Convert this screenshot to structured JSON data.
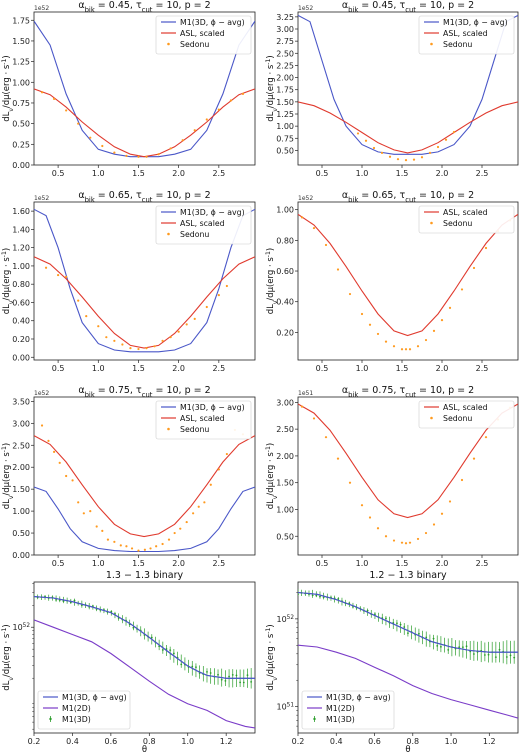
{
  "figure": {
    "x_label_bottom": "θ",
    "y_label": "dL_{ν}/dμ(erg · s^{-1})"
  },
  "colors": {
    "m1_3d_avg": "#4a57c8",
    "m1_2d": "#7a3cc8",
    "asl": "#e03a2e",
    "sedonu": "#ff9a1f",
    "m1_3d_points": "#2a9d2a"
  },
  "chart_data": [
    {
      "type": "line",
      "title": "α_bik = 0.45, τ_cut = 10, p = 2",
      "multiplier": "1e52",
      "xlim": [
        0.2,
        2.95
      ],
      "ylim": [
        0,
        1.85
      ],
      "xticks": [
        0.5,
        1.0,
        1.5,
        2.0,
        2.5
      ],
      "yticks": [
        0.0,
        0.25,
        0.5,
        0.75,
        1.0,
        1.25,
        1.5,
        1.75
      ],
      "series": [
        {
          "name": "M1(3D, ϕ − avg)",
          "kind": "line",
          "color_key": "m1_3d_avg",
          "x": [
            0.2,
            0.4,
            0.6,
            0.8,
            1.0,
            1.2,
            1.4,
            1.57,
            1.75,
            1.95,
            2.15,
            2.35,
            2.55,
            2.75,
            2.95
          ],
          "y": [
            1.74,
            1.45,
            0.86,
            0.42,
            0.19,
            0.13,
            0.1,
            0.1,
            0.1,
            0.13,
            0.19,
            0.42,
            0.86,
            1.45,
            1.74
          ]
        },
        {
          "name": "ASL, scaled",
          "kind": "line",
          "color_key": "asl",
          "x": [
            0.2,
            0.4,
            0.6,
            0.8,
            1.0,
            1.2,
            1.4,
            1.57,
            1.75,
            1.95,
            2.15,
            2.35,
            2.55,
            2.75,
            2.95
          ],
          "y": [
            0.92,
            0.85,
            0.7,
            0.52,
            0.36,
            0.22,
            0.13,
            0.1,
            0.13,
            0.22,
            0.36,
            0.52,
            0.7,
            0.85,
            0.92
          ]
        },
        {
          "name": "Sedonu",
          "kind": "scatter",
          "color_key": "sedonu",
          "x": [
            0.3,
            0.45,
            0.6,
            0.75,
            0.9,
            1.05,
            1.2,
            1.35,
            1.5,
            1.6,
            1.75,
            1.9,
            2.05,
            2.2,
            2.35,
            2.5,
            2.65,
            2.8
          ],
          "y": [
            0.88,
            0.8,
            0.66,
            0.5,
            0.33,
            0.23,
            0.15,
            0.11,
            0.1,
            0.1,
            0.13,
            0.2,
            0.3,
            0.42,
            0.55,
            0.67,
            0.78,
            0.86
          ]
        }
      ]
    },
    {
      "type": "line",
      "title": "α_bik = 0.45, τ_cut = 10, p = 2",
      "multiplier": "1e52",
      "xlim": [
        0.2,
        2.95
      ],
      "ylim": [
        0.2,
        3.35
      ],
      "xticks": [
        0.5,
        1.0,
        1.5,
        2.0,
        2.5
      ],
      "yticks": [
        0.5,
        0.75,
        1.0,
        1.25,
        1.5,
        1.75,
        2.0,
        2.25,
        2.5,
        2.75,
        3.0,
        3.25
      ],
      "series": [
        {
          "name": "M1(3D, ϕ − avg)",
          "kind": "line",
          "color_key": "m1_3d_avg",
          "x": [
            0.2,
            0.35,
            0.5,
            0.65,
            0.8,
            1.0,
            1.2,
            1.4,
            1.57,
            1.75,
            1.95,
            2.15,
            2.35,
            2.5,
            2.65,
            2.8,
            2.95
          ],
          "y": [
            3.28,
            3.15,
            2.35,
            1.55,
            1.0,
            0.62,
            0.47,
            0.42,
            0.42,
            0.42,
            0.47,
            0.62,
            1.0,
            1.55,
            2.35,
            3.15,
            3.28
          ]
        },
        {
          "name": "ASL, scaled",
          "kind": "line",
          "color_key": "asl",
          "x": [
            0.2,
            0.4,
            0.6,
            0.8,
            1.0,
            1.2,
            1.4,
            1.57,
            1.75,
            1.95,
            2.15,
            2.35,
            2.55,
            2.75,
            2.95
          ],
          "y": [
            1.5,
            1.42,
            1.27,
            1.08,
            0.87,
            0.66,
            0.51,
            0.45,
            0.51,
            0.66,
            0.87,
            1.08,
            1.27,
            1.42,
            1.5
          ]
        },
        {
          "name": "Sedonu",
          "kind": "scatter",
          "color_key": "sedonu",
          "x": [
            0.95,
            1.05,
            1.15,
            1.25,
            1.35,
            1.45,
            1.55,
            1.65,
            1.75,
            1.85,
            1.95,
            2.05,
            2.15
          ],
          "y": [
            0.85,
            0.7,
            0.55,
            0.45,
            0.37,
            0.32,
            0.3,
            0.31,
            0.36,
            0.45,
            0.57,
            0.72,
            0.88
          ]
        }
      ]
    },
    {
      "type": "line",
      "title": "α_bik = 0.65, τ_cut = 10, p = 2",
      "multiplier": "1e52",
      "xlim": [
        0.2,
        2.95
      ],
      "ylim": [
        -0.03,
        1.7
      ],
      "xticks": [
        0.5,
        1.0,
        1.5,
        2.0,
        2.5
      ],
      "yticks": [
        0.0,
        0.2,
        0.4,
        0.6,
        0.8,
        1.0,
        1.2,
        1.4,
        1.6
      ],
      "series": [
        {
          "name": "M1(3D, ϕ − avg)",
          "kind": "line",
          "color_key": "m1_3d_avg",
          "x": [
            0.2,
            0.35,
            0.5,
            0.65,
            0.8,
            1.0,
            1.2,
            1.4,
            1.57,
            1.75,
            1.95,
            2.15,
            2.35,
            2.5,
            2.65,
            2.8,
            2.95
          ],
          "y": [
            1.62,
            1.55,
            1.2,
            0.75,
            0.38,
            0.15,
            0.08,
            0.06,
            0.06,
            0.06,
            0.08,
            0.15,
            0.38,
            0.75,
            1.2,
            1.55,
            1.62
          ]
        },
        {
          "name": "ASL, scaled",
          "kind": "line",
          "color_key": "asl",
          "x": [
            0.2,
            0.4,
            0.6,
            0.8,
            1.0,
            1.2,
            1.4,
            1.57,
            1.75,
            1.95,
            2.15,
            2.35,
            2.55,
            2.75,
            2.95
          ],
          "y": [
            1.1,
            1.02,
            0.86,
            0.66,
            0.45,
            0.26,
            0.13,
            0.1,
            0.13,
            0.26,
            0.45,
            0.66,
            0.86,
            1.02,
            1.1
          ]
        },
        {
          "name": "Sedonu",
          "kind": "scatter",
          "color_key": "sedonu",
          "x": [
            0.35,
            0.5,
            0.6,
            0.75,
            0.85,
            1.0,
            1.1,
            1.2,
            1.3,
            1.4,
            1.5,
            1.6,
            1.7,
            1.8,
            1.9,
            2.0,
            2.1,
            2.2,
            2.35,
            2.5,
            2.6
          ],
          "y": [
            0.98,
            0.9,
            0.88,
            0.62,
            0.45,
            0.34,
            0.22,
            0.18,
            0.14,
            0.1,
            0.09,
            0.1,
            0.12,
            0.18,
            0.22,
            0.28,
            0.36,
            0.42,
            0.55,
            0.68,
            0.78
          ]
        }
      ]
    },
    {
      "type": "line",
      "title": "α_bik = 0.65, τ_cut = 10, p = 2",
      "multiplier": "1e52",
      "xlim": [
        0.2,
        2.95
      ],
      "ylim": [
        0.02,
        1.05
      ],
      "xticks": [
        0.5,
        1.0,
        1.5,
        2.0,
        2.5
      ],
      "yticks": [
        0.2,
        0.4,
        0.6,
        0.8,
        1.0
      ],
      "series": [
        {
          "name": "ASL, scaled",
          "kind": "line",
          "color_key": "asl",
          "x": [
            0.2,
            0.4,
            0.6,
            0.8,
            1.0,
            1.2,
            1.4,
            1.57,
            1.75,
            1.95,
            2.15,
            2.35,
            2.55,
            2.75,
            2.95
          ],
          "y": [
            0.97,
            0.9,
            0.78,
            0.63,
            0.47,
            0.32,
            0.21,
            0.18,
            0.21,
            0.32,
            0.47,
            0.63,
            0.78,
            0.9,
            0.97
          ]
        },
        {
          "name": "Sedonu",
          "kind": "scatter",
          "color_key": "sedonu",
          "x": [
            0.25,
            0.4,
            0.55,
            0.7,
            0.85,
            1.0,
            1.1,
            1.2,
            1.3,
            1.4,
            1.5,
            1.55,
            1.6,
            1.7,
            1.8,
            1.9,
            2.0,
            2.1,
            2.25,
            2.4,
            2.55,
            2.7,
            2.85
          ],
          "y": [
            0.95,
            0.88,
            0.77,
            0.61,
            0.45,
            0.32,
            0.25,
            0.19,
            0.14,
            0.11,
            0.09,
            0.09,
            0.09,
            0.11,
            0.15,
            0.21,
            0.28,
            0.36,
            0.48,
            0.62,
            0.75,
            0.86,
            0.93
          ]
        }
      ]
    },
    {
      "type": "line",
      "title": "α_bik = 0.75, τ_cut = 10, p = 2",
      "multiplier": "1e52",
      "xlim": [
        0.2,
        2.95
      ],
      "ylim": [
        0,
        3.6
      ],
      "xticks": [
        0.5,
        1.0,
        1.5,
        2.0,
        2.5
      ],
      "yticks": [
        0.0,
        0.5,
        1.0,
        1.5,
        2.0,
        2.5,
        3.0,
        3.5
      ],
      "series": [
        {
          "name": "M1(3D, ϕ − avg)",
          "kind": "line",
          "color_key": "m1_3d_avg",
          "x": [
            0.2,
            0.35,
            0.5,
            0.65,
            0.8,
            1.0,
            1.2,
            1.4,
            1.57,
            1.75,
            1.95,
            2.15,
            2.35,
            2.5,
            2.65,
            2.8,
            2.95
          ],
          "y": [
            1.55,
            1.45,
            1.05,
            0.6,
            0.3,
            0.15,
            0.1,
            0.08,
            0.08,
            0.08,
            0.1,
            0.15,
            0.3,
            0.6,
            1.05,
            1.45,
            1.55
          ]
        },
        {
          "name": "ASL, scaled",
          "kind": "line",
          "color_key": "asl",
          "x": [
            0.2,
            0.4,
            0.6,
            0.8,
            1.0,
            1.2,
            1.4,
            1.57,
            1.75,
            1.95,
            2.15,
            2.35,
            2.55,
            2.75,
            2.95
          ],
          "y": [
            2.72,
            2.52,
            2.12,
            1.6,
            1.1,
            0.7,
            0.48,
            0.42,
            0.48,
            0.7,
            1.1,
            1.6,
            2.12,
            2.52,
            2.72
          ]
        },
        {
          "name": "Sedonu",
          "kind": "scatter",
          "color_key": "sedonu",
          "x": [
            0.3,
            0.38,
            0.45,
            0.52,
            0.6,
            0.68,
            0.75,
            0.82,
            0.9,
            0.98,
            1.05,
            1.12,
            1.2,
            1.28,
            1.35,
            1.42,
            1.5,
            1.58,
            1.65,
            1.72,
            1.8,
            1.88,
            1.95,
            2.02,
            2.1,
            2.18,
            2.25,
            2.32,
            2.4,
            2.5,
            2.6,
            2.7,
            2.8
          ],
          "y": [
            2.95,
            2.6,
            2.35,
            2.1,
            1.8,
            1.7,
            1.2,
            0.95,
            1.0,
            0.65,
            0.55,
            0.35,
            0.3,
            0.22,
            0.2,
            0.15,
            0.1,
            0.12,
            0.15,
            0.2,
            0.25,
            0.35,
            0.5,
            0.6,
            0.75,
            0.95,
            1.1,
            1.2,
            1.6,
            1.95,
            2.3,
            2.85,
            2.75
          ]
        }
      ]
    },
    {
      "type": "line",
      "title": "α_bik = 0.75, τ_cut = 10, p = 2",
      "multiplier": "1e51",
      "xlim": [
        0.2,
        2.95
      ],
      "ylim": [
        0.15,
        3.1
      ],
      "xticks": [
        0.5,
        1.0,
        1.5,
        2.0,
        2.5
      ],
      "yticks": [
        0.5,
        1.0,
        1.5,
        2.0,
        2.5,
        3.0
      ],
      "series": [
        {
          "name": "ASL, scaled",
          "kind": "line",
          "color_key": "asl",
          "x": [
            0.2,
            0.4,
            0.6,
            0.8,
            1.0,
            1.2,
            1.4,
            1.57,
            1.75,
            1.95,
            2.15,
            2.35,
            2.55,
            2.75,
            2.95
          ],
          "y": [
            2.97,
            2.8,
            2.48,
            2.05,
            1.6,
            1.18,
            0.92,
            0.85,
            0.92,
            1.18,
            1.6,
            2.05,
            2.48,
            2.8,
            2.97
          ]
        },
        {
          "name": "Sedonu",
          "kind": "scatter",
          "color_key": "sedonu",
          "x": [
            0.25,
            0.4,
            0.55,
            0.7,
            0.85,
            1.0,
            1.1,
            1.2,
            1.3,
            1.4,
            1.5,
            1.55,
            1.6,
            1.7,
            1.8,
            1.9,
            2.0,
            2.1,
            2.25,
            2.4,
            2.55,
            2.7,
            2.85
          ],
          "y": [
            2.92,
            2.7,
            2.35,
            1.95,
            1.5,
            1.08,
            0.85,
            0.65,
            0.5,
            0.42,
            0.38,
            0.37,
            0.38,
            0.45,
            0.56,
            0.72,
            0.92,
            1.15,
            1.55,
            1.95,
            2.35,
            2.68,
            2.9
          ]
        }
      ]
    },
    {
      "type": "line",
      "title": "1.3 − 1.3 binary",
      "yscale": "log",
      "xlim": [
        0.2,
        1.35
      ],
      "ylim_log": [
        50.55,
        52.62
      ],
      "xticks": [
        0.2,
        0.4,
        0.6,
        0.8,
        1.0,
        1.2
      ],
      "ytick_labels": [
        {
          "value": 52,
          "label": "10^52"
        }
      ],
      "series": [
        {
          "name": "M1(3D, ϕ − avg)",
          "kind": "line",
          "color_key": "m1_3d_avg",
          "x": [
            0.2,
            0.3,
            0.4,
            0.5,
            0.6,
            0.7,
            0.8,
            0.9,
            1.0,
            1.05,
            1.1,
            1.2,
            1.3,
            1.35
          ],
          "log_y": [
            52.42,
            52.4,
            52.35,
            52.28,
            52.2,
            52.05,
            51.86,
            51.66,
            51.47,
            51.4,
            51.34,
            51.3,
            51.3,
            51.3
          ]
        },
        {
          "name": "M1(2D)",
          "kind": "line",
          "color_key": "m1_2d",
          "x": [
            0.2,
            0.3,
            0.4,
            0.5,
            0.6,
            0.7,
            0.8,
            0.9,
            1.0,
            1.1,
            1.2,
            1.3,
            1.35
          ],
          "log_y": [
            52.1,
            52.0,
            51.9,
            51.8,
            51.64,
            51.45,
            51.26,
            51.08,
            50.95,
            50.86,
            50.72,
            50.64,
            50.62
          ]
        },
        {
          "name": "M1(3D)",
          "kind": "errorscatter",
          "color_key": "m1_3d_points",
          "x_start": 0.2,
          "x_end": 1.33,
          "count": 60,
          "log_y_center": "follows M1(3D, ϕ − avg)"
        }
      ]
    },
    {
      "type": "line",
      "title": "1.2 − 1.3 binary",
      "yscale": "log",
      "xlim": [
        0.2,
        1.35
      ],
      "ylim_log": [
        50.7,
        52.42
      ],
      "xticks": [
        0.2,
        0.4,
        0.6,
        0.8,
        1.0,
        1.2
      ],
      "ytick_labels": [
        {
          "value": 51,
          "label": "10^51"
        },
        {
          "value": 52,
          "label": "10^52"
        }
      ],
      "series": [
        {
          "name": "M1(3D, ϕ − avg)",
          "kind": "line",
          "color_key": "m1_3d_avg",
          "x": [
            0.2,
            0.3,
            0.4,
            0.5,
            0.6,
            0.7,
            0.8,
            0.9,
            1.0,
            1.1,
            1.2,
            1.3,
            1.35
          ],
          "log_y": [
            52.3,
            52.28,
            52.22,
            52.14,
            52.04,
            51.94,
            51.84,
            51.74,
            51.68,
            51.64,
            51.62,
            51.62,
            51.62
          ]
        },
        {
          "name": "M1(2D)",
          "kind": "line",
          "color_key": "m1_2d",
          "x": [
            0.2,
            0.3,
            0.4,
            0.5,
            0.6,
            0.7,
            0.8,
            0.9,
            1.0,
            1.1,
            1.2,
            1.3,
            1.35
          ],
          "log_y": [
            51.7,
            51.68,
            51.62,
            51.55,
            51.45,
            51.35,
            51.24,
            51.15,
            51.08,
            51.02,
            50.96,
            50.9,
            50.87
          ]
        },
        {
          "name": "M1(3D)",
          "kind": "errorscatter",
          "color_key": "m1_3d_points",
          "x_start": 0.2,
          "x_end": 1.33,
          "count": 60,
          "log_y_center": "follows M1(3D, ϕ − avg)"
        }
      ]
    }
  ]
}
